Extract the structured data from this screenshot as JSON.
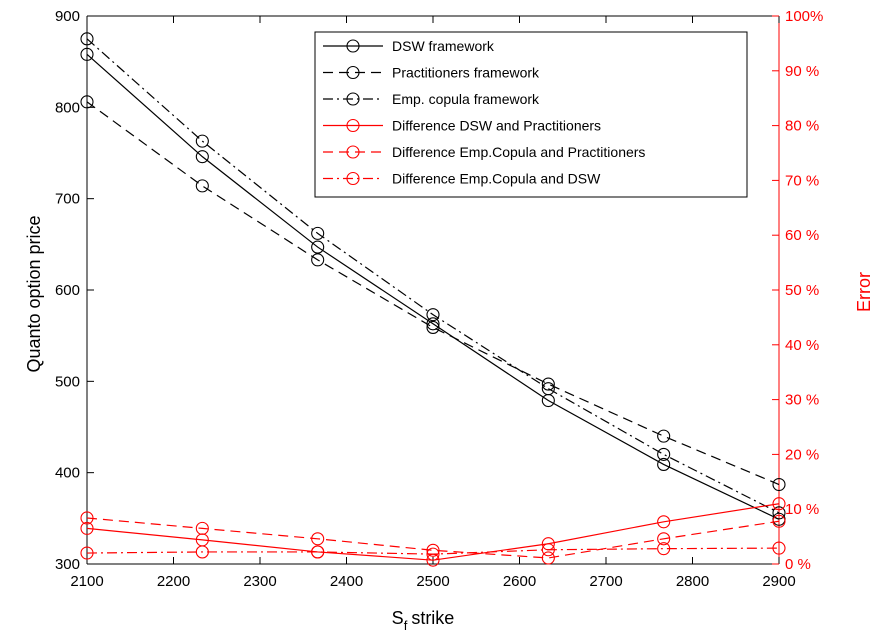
{
  "chart_data": {
    "type": "line",
    "title": "",
    "xlabel": "strike",
    "xlabel_symbol": "S",
    "xlabel_subscript": "f",
    "ylabel_left": "Quanto option price",
    "ylabel_right": "Error",
    "xlim": [
      2100,
      2900
    ],
    "ylim_left": [
      300,
      900
    ],
    "ylim_right": [
      0,
      100
    ],
    "x_ticks": [
      2100,
      2200,
      2300,
      2400,
      2500,
      2600,
      2700,
      2800,
      2900
    ],
    "x_tick_labels": [
      "2100",
      "2200",
      "2300",
      "2400",
      "2500",
      "2600",
      "2700",
      "2800",
      "2900"
    ],
    "y_left_ticks": [
      300,
      400,
      500,
      600,
      700,
      800,
      900
    ],
    "y_left_tick_labels": [
      "300",
      "400",
      "500",
      "600",
      "700",
      "800",
      "900"
    ],
    "y_right_ticks": [
      0,
      10,
      20,
      30,
      40,
      50,
      60,
      70,
      80,
      90,
      100
    ],
    "y_right_tick_labels": [
      "0 %",
      "10 %",
      "20 %",
      "30 %",
      "40 %",
      "50 %",
      "60 %",
      "70 %",
      "80 %",
      "90 %",
      "100%"
    ],
    "x": [
      2100,
      2233.33,
      2366.67,
      2500,
      2633.33,
      2766.67,
      2900
    ],
    "grid": false,
    "legend_position": "top-right",
    "colors": {
      "left_axis": "#000000",
      "right_axis": "#ff0000"
    },
    "series": [
      {
        "name": "DSW framework",
        "axis": "left",
        "color": "#000000",
        "dash": "solid",
        "marker": "circle",
        "values": [
          858,
          746,
          647,
          563,
          479,
          409,
          349
        ]
      },
      {
        "name": "Practitioners framework",
        "axis": "left",
        "color": "#000000",
        "dash": "dashed",
        "marker": "circle",
        "values": [
          806,
          714,
          633,
          559,
          497,
          440,
          387
        ]
      },
      {
        "name": "Emp. copula framework",
        "axis": "left",
        "color": "#000000",
        "dash": "dashdot",
        "marker": "circle",
        "values": [
          875,
          763,
          662,
          573,
          492,
          420,
          356
        ]
      },
      {
        "name": "Difference DSW and Practitioners",
        "axis": "right",
        "color": "#ff0000",
        "dash": "solid",
        "marker": "circle",
        "values": [
          6.5,
          4.4,
          2.2,
          0.7,
          3.7,
          7.7,
          11.0
        ]
      },
      {
        "name": "Difference Emp.Copula and Practitioners",
        "axis": "right",
        "color": "#ff0000",
        "dash": "dashed",
        "marker": "circle",
        "values": [
          8.4,
          6.5,
          4.6,
          2.5,
          1.1,
          4.6,
          7.8
        ]
      },
      {
        "name": "Difference Emp.Copula and DSW",
        "axis": "right",
        "color": "#ff0000",
        "dash": "dashdot",
        "marker": "circle",
        "values": [
          2.0,
          2.2,
          2.2,
          1.8,
          2.6,
          2.8,
          2.9
        ]
      }
    ]
  }
}
